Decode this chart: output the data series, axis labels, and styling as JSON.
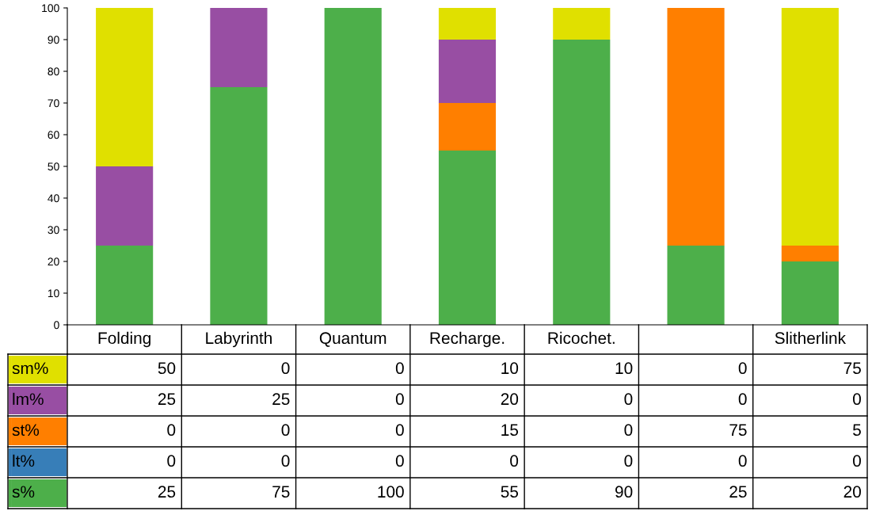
{
  "chart_data": {
    "type": "bar",
    "stacked": true,
    "categories": [
      "Folding",
      "Labyrinth",
      "Quantum",
      "Recharge.",
      "Ricochet.",
      null,
      "Slitherlink"
    ],
    "series": [
      {
        "name": "s%",
        "color": "#4daf4a",
        "values": [
          25,
          75,
          100,
          55,
          90,
          25,
          20
        ]
      },
      {
        "name": "lt%",
        "color": "#377eb8",
        "values": [
          0,
          0,
          0,
          0,
          0,
          0,
          0
        ]
      },
      {
        "name": "st%",
        "color": "#ff7f00",
        "values": [
          0,
          0,
          0,
          15,
          0,
          75,
          5
        ]
      },
      {
        "name": "lm%",
        "color": "#984ea3",
        "values": [
          25,
          25,
          0,
          20,
          0,
          0,
          0
        ]
      },
      {
        "name": "sm%",
        "color": "#e0e000",
        "values": [
          50,
          0,
          0,
          10,
          10,
          0,
          75
        ]
      }
    ],
    "ylim": [
      0,
      100
    ],
    "yticks": [
      0,
      10,
      20,
      30,
      40,
      50,
      60,
      70,
      80,
      90,
      100
    ],
    "data_labels": true,
    "grid": false,
    "legend": "bottom left"
  }
}
